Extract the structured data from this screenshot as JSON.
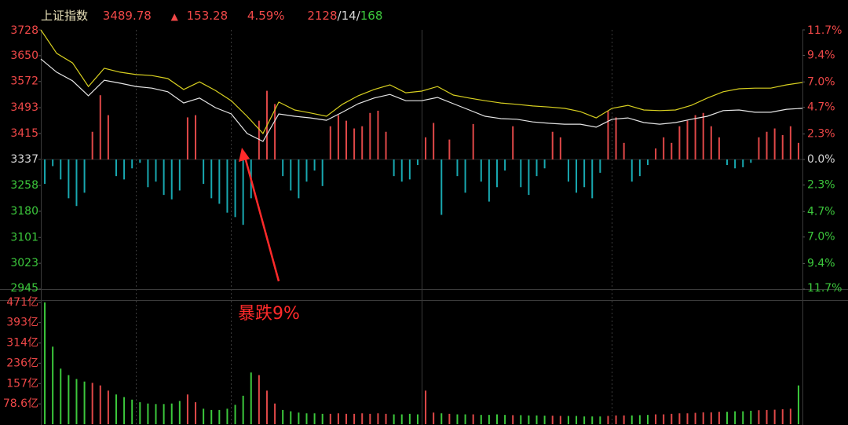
{
  "header": {
    "name": "上证指数",
    "price": "3489.78",
    "arrow": "▲",
    "change": "153.28",
    "pct": "4.59%",
    "advances": "2128",
    "separator": "/",
    "flat": "14",
    "declines": "168"
  },
  "chart_data": [
    {
      "type": "line",
      "ylim": [
        2945,
        3728
      ],
      "yticks": [
        3728,
        3650,
        3572,
        3493,
        3415,
        3337,
        3258,
        3180,
        3101,
        3023,
        2945
      ],
      "y2lim": [
        -11.7,
        11.7
      ],
      "y2ticks": [
        {
          "value": 11.7,
          "label": "11.7%"
        },
        {
          "value": 9.4,
          "label": "9.4%"
        },
        {
          "value": 7.0,
          "label": "7.0%"
        },
        {
          "value": 4.7,
          "label": "4.7%"
        },
        {
          "value": 2.3,
          "label": "2.3%"
        },
        {
          "value": 0,
          "label": "0.0%"
        },
        {
          "value": -2.3,
          "label": "2.3%"
        },
        {
          "value": -4.7,
          "label": "4.7%"
        },
        {
          "value": -7.0,
          "label": "7.0%"
        },
        {
          "value": -9.4,
          "label": "9.4%"
        },
        {
          "value": -11.7,
          "label": "11.7%"
        }
      ],
      "up_color": "#f04848",
      "down_color": "#3cc83c",
      "flat_color": "#d8d8d8",
      "series": [
        {
          "color": "#e6e6e6",
          "values": [
            3640,
            3600,
            3574,
            3529,
            3576,
            3567,
            3557,
            3552,
            3541,
            3507,
            3522,
            3493,
            3474,
            3415,
            3391,
            3474,
            3467,
            3462,
            3455,
            3479,
            3505,
            3522,
            3533,
            3514,
            3514,
            3524,
            3505,
            3486,
            3467,
            3460,
            3458,
            3450,
            3446,
            3443,
            3443,
            3434,
            3458,
            3462,
            3448,
            3443,
            3448,
            3458,
            3467,
            3484,
            3486,
            3479,
            3479,
            3488,
            3491
          ]
        },
        {
          "color": "#d8d020",
          "values": [
            3728,
            3657,
            3628,
            3557,
            3612,
            3600,
            3593,
            3590,
            3581,
            3548,
            3571,
            3545,
            3514,
            3467,
            3415,
            3510,
            3486,
            3477,
            3467,
            3503,
            3529,
            3548,
            3562,
            3538,
            3543,
            3557,
            3531,
            3522,
            3514,
            3507,
            3503,
            3498,
            3495,
            3491,
            3481,
            3462,
            3491,
            3500,
            3486,
            3484,
            3486,
            3500,
            3522,
            3541,
            3550,
            3552,
            3552,
            3562,
            3569
          ]
        }
      ],
      "bars": {
        "axis": "y2",
        "up_color": "#e04848",
        "down_color": "#18a8b0",
        "values": [
          -2.2,
          -0.6,
          -1.8,
          -3.5,
          -4.2,
          -3.0,
          2.5,
          5.8,
          4.0,
          -1.5,
          -1.8,
          -0.8,
          -0.3,
          -2.5,
          -2.0,
          -3.2,
          -3.6,
          -2.8,
          3.8,
          4.0,
          -2.2,
          -3.5,
          -4.0,
          -4.8,
          -5.2,
          -5.9,
          -3.5,
          3.5,
          6.2,
          5.0,
          -1.5,
          -2.8,
          -3.5,
          -2.0,
          -1.0,
          -2.4,
          3.0,
          4.0,
          3.5,
          2.8,
          3.0,
          4.2,
          4.4,
          2.5,
          -1.5,
          -2.0,
          -1.8,
          -0.5,
          2.0,
          3.3,
          -5.0,
          1.8,
          -1.5,
          -3.0,
          3.2,
          -2.0,
          -3.8,
          -2.5,
          -1.0,
          3.0,
          -2.5,
          -3.2,
          -1.5,
          -0.8,
          2.5,
          2.0,
          -2.0,
          -3.0,
          -2.5,
          -3.5,
          -1.2,
          4.4,
          3.8,
          1.5,
          -2.0,
          -1.5,
          -0.5,
          1.0,
          2.0,
          1.5,
          3.0,
          3.5,
          4.0,
          4.2,
          3.0,
          2.0,
          -0.5,
          -0.8,
          -0.7,
          -0.3,
          2.0,
          2.5,
          2.8,
          2.2,
          3.0,
          1.5
        ]
      },
      "annotation": {
        "text": "暴跌9%",
        "color": "#ff2a2a"
      }
    },
    {
      "type": "bar",
      "ylim": [
        0,
        471
      ],
      "yticks": [
        {
          "value": 471,
          "label": "471亿"
        },
        {
          "value": 393,
          "label": "393亿"
        },
        {
          "value": 314,
          "label": "314亿"
        },
        {
          "value": 236,
          "label": "236亿"
        },
        {
          "value": 157,
          "label": "157亿"
        },
        {
          "value": 78.6,
          "label": "78.6亿"
        }
      ],
      "up_color": "#e04848",
      "down_color": "#3cc83c",
      "label_color": "#f04848",
      "values": [
        471,
        300,
        215,
        190,
        175,
        165,
        160,
        150,
        130,
        115,
        105,
        95,
        85,
        80,
        78,
        78,
        80,
        90,
        115,
        85,
        60,
        55,
        55,
        60,
        75,
        110,
        200,
        190,
        130,
        80,
        55,
        50,
        45,
        42,
        42,
        40,
        40,
        42,
        40,
        40,
        42,
        40,
        42,
        40,
        38,
        38,
        40,
        38,
        130,
        45,
        42,
        40,
        38,
        38,
        38,
        36,
        36,
        38,
        36,
        35,
        35,
        34,
        34,
        33,
        33,
        32,
        32,
        32,
        30,
        30,
        30,
        32,
        34,
        34,
        34,
        35,
        36,
        38,
        38,
        40,
        42,
        42,
        44,
        46,
        46,
        48,
        48,
        50,
        50,
        52,
        54,
        55,
        56,
        58,
        60,
        150
      ],
      "rising": [
        0,
        0,
        0,
        0,
        0,
        0,
        1,
        1,
        1,
        0,
        0,
        0,
        0,
        0,
        0,
        0,
        0,
        0,
        1,
        1,
        0,
        0,
        0,
        0,
        0,
        0,
        0,
        1,
        1,
        1,
        0,
        0,
        0,
        0,
        0,
        0,
        1,
        1,
        1,
        1,
        1,
        1,
        1,
        1,
        0,
        0,
        0,
        0,
        1,
        1,
        0,
        1,
        0,
        0,
        1,
        0,
        0,
        0,
        0,
        1,
        0,
        0,
        0,
        0,
        1,
        1,
        0,
        0,
        0,
        0,
        0,
        1,
        1,
        1,
        0,
        0,
        0,
        1,
        1,
        1,
        1,
        1,
        1,
        1,
        1,
        1,
        0,
        0,
        0,
        0,
        1,
        1,
        1,
        1,
        1,
        0
      ]
    }
  ]
}
